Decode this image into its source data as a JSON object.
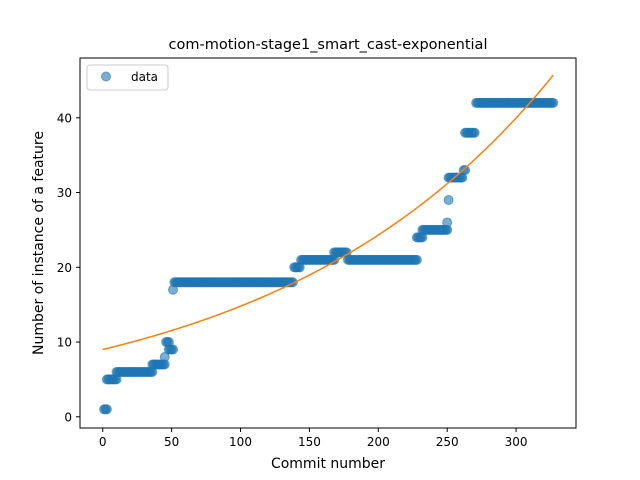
{
  "chart_data": {
    "type": "scatter",
    "title": "com-motion-stage1_smart_cast-exponential",
    "xlabel": "Commit number",
    "ylabel": "Number of instance of a feature",
    "xlim": [
      -16.5,
      343.5
    ],
    "ylim": [
      -1.5,
      48.0
    ],
    "xticks": [
      0,
      50,
      100,
      150,
      200,
      250,
      300
    ],
    "yticks": [
      0,
      10,
      20,
      30,
      40
    ],
    "grid": false,
    "legend": {
      "position": "top-left",
      "entries": [
        "data"
      ]
    },
    "colors": {
      "data": "#1f77b4",
      "fit": "#ff7f0e"
    },
    "series": [
      {
        "name": "data",
        "kind": "scatter",
        "segments": [
          {
            "x_start": 1,
            "x_end": 3,
            "y": 1
          },
          {
            "x_start": 3,
            "x_end": 10,
            "y": 5
          },
          {
            "x_start": 10,
            "x_end": 36,
            "y": 6
          },
          {
            "x_start": 36,
            "x_end": 45,
            "y": 7
          },
          {
            "x_start": 45,
            "x_end": 45,
            "y": 8
          },
          {
            "x_start": 46,
            "x_end": 48,
            "y": 10
          },
          {
            "x_start": 48,
            "x_end": 51,
            "y": 9
          },
          {
            "x_start": 51,
            "x_end": 51,
            "y": 17
          },
          {
            "x_start": 52,
            "x_end": 138,
            "y": 18
          },
          {
            "x_start": 139,
            "x_end": 143,
            "y": 20
          },
          {
            "x_start": 144,
            "x_end": 168,
            "y": 21
          },
          {
            "x_start": 168,
            "x_end": 177,
            "y": 22
          },
          {
            "x_start": 178,
            "x_end": 228,
            "y": 21
          },
          {
            "x_start": 228,
            "x_end": 232,
            "y": 24
          },
          {
            "x_start": 232,
            "x_end": 250,
            "y": 25
          },
          {
            "x_start": 250,
            "x_end": 250,
            "y": 26
          },
          {
            "x_start": 251,
            "x_end": 251,
            "y": 29
          },
          {
            "x_start": 251,
            "x_end": 261,
            "y": 32
          },
          {
            "x_start": 262,
            "x_end": 263,
            "y": 33
          },
          {
            "x_start": 263,
            "x_end": 270,
            "y": 38
          },
          {
            "x_start": 271,
            "x_end": 327,
            "y": 42
          }
        ]
      },
      {
        "name": "",
        "kind": "line",
        "x_start": 0,
        "x_end": 327,
        "y_start": 9.0,
        "y_end": 45.7
      }
    ]
  }
}
